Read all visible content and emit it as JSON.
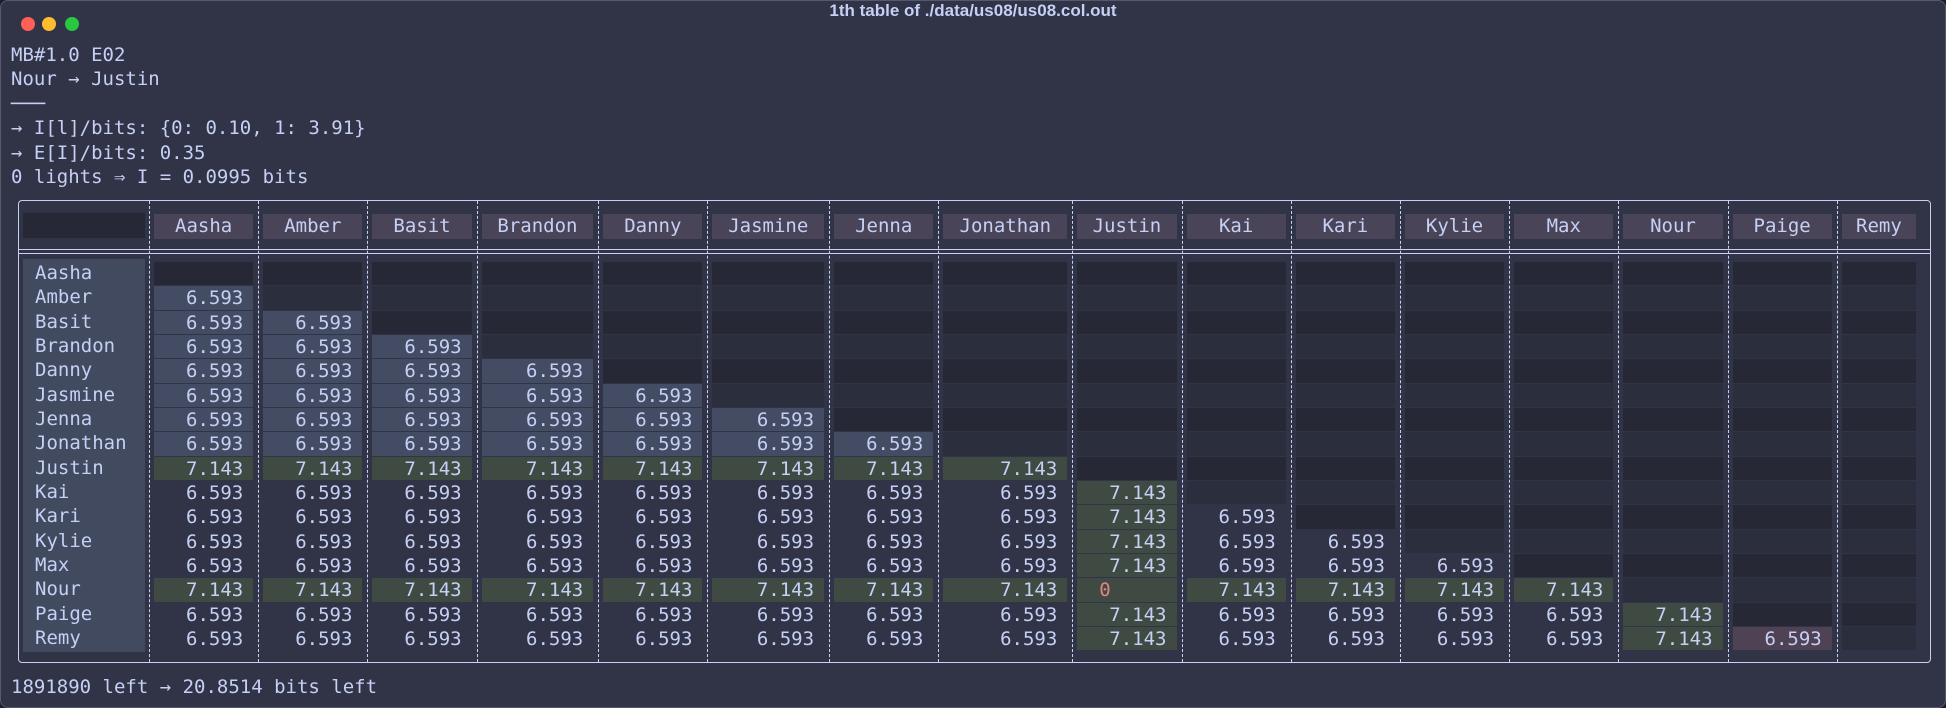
{
  "window": {
    "title": "1th table of ./data/us08/us08.col.out"
  },
  "header": {
    "lines": [
      "MB#1.0 E02",
      "Nour → Justin",
      "───",
      "→ I[l]/bits: {0: 0.10, 1: 3.91}",
      "→ E[I]/bits: 0.35",
      "0 lights ⇒ I = 0.0995 bits"
    ]
  },
  "table": {
    "columns": [
      "Aasha",
      "Amber",
      "Basit",
      "Brandon",
      "Danny",
      "Jasmine",
      "Jenna",
      "Jonathan",
      "Justin",
      "Kai",
      "Kari",
      "Kylie",
      "Max",
      "Nour",
      "Paige",
      "Remy"
    ],
    "rows": [
      {
        "label": "Aasha",
        "cells": [
          null,
          null,
          null,
          null,
          null,
          null,
          null,
          null,
          null,
          null,
          null,
          null,
          null,
          null,
          null,
          null
        ]
      },
      {
        "label": "Amber",
        "cells": [
          6.593,
          null,
          null,
          null,
          null,
          null,
          null,
          null,
          null,
          null,
          null,
          null,
          null,
          null,
          null,
          null
        ]
      },
      {
        "label": "Basit",
        "cells": [
          6.593,
          6.593,
          null,
          null,
          null,
          null,
          null,
          null,
          null,
          null,
          null,
          null,
          null,
          null,
          null,
          null
        ]
      },
      {
        "label": "Brandon",
        "cells": [
          6.593,
          6.593,
          6.593,
          null,
          null,
          null,
          null,
          null,
          null,
          null,
          null,
          null,
          null,
          null,
          null,
          null
        ]
      },
      {
        "label": "Danny",
        "cells": [
          6.593,
          6.593,
          6.593,
          6.593,
          null,
          null,
          null,
          null,
          null,
          null,
          null,
          null,
          null,
          null,
          null,
          null
        ]
      },
      {
        "label": "Jasmine",
        "cells": [
          6.593,
          6.593,
          6.593,
          6.593,
          6.593,
          null,
          null,
          null,
          null,
          null,
          null,
          null,
          null,
          null,
          null,
          null
        ]
      },
      {
        "label": "Jenna",
        "cells": [
          6.593,
          6.593,
          6.593,
          6.593,
          6.593,
          6.593,
          null,
          null,
          null,
          null,
          null,
          null,
          null,
          null,
          null,
          null
        ]
      },
      {
        "label": "Jonathan",
        "cells": [
          6.593,
          6.593,
          6.593,
          6.593,
          6.593,
          6.593,
          6.593,
          null,
          null,
          null,
          null,
          null,
          null,
          null,
          null,
          null
        ]
      },
      {
        "label": "Justin",
        "cells": [
          7.143,
          7.143,
          7.143,
          7.143,
          7.143,
          7.143,
          7.143,
          7.143,
          null,
          null,
          null,
          null,
          null,
          null,
          null,
          null
        ]
      },
      {
        "label": "Kai",
        "cells": [
          6.593,
          6.593,
          6.593,
          6.593,
          6.593,
          6.593,
          6.593,
          6.593,
          7.143,
          null,
          null,
          null,
          null,
          null,
          null,
          null
        ]
      },
      {
        "label": "Kari",
        "cells": [
          6.593,
          6.593,
          6.593,
          6.593,
          6.593,
          6.593,
          6.593,
          6.593,
          7.143,
          6.593,
          null,
          null,
          null,
          null,
          null,
          null
        ]
      },
      {
        "label": "Kylie",
        "cells": [
          6.593,
          6.593,
          6.593,
          6.593,
          6.593,
          6.593,
          6.593,
          6.593,
          7.143,
          6.593,
          6.593,
          null,
          null,
          null,
          null,
          null
        ]
      },
      {
        "label": "Max",
        "cells": [
          6.593,
          6.593,
          6.593,
          6.593,
          6.593,
          6.593,
          6.593,
          6.593,
          7.143,
          6.593,
          6.593,
          6.593,
          null,
          null,
          null,
          null
        ]
      },
      {
        "label": "Nour",
        "cells": [
          7.143,
          7.143,
          7.143,
          7.143,
          7.143,
          7.143,
          7.143,
          7.143,
          0,
          7.143,
          7.143,
          7.143,
          7.143,
          null,
          null,
          null
        ]
      },
      {
        "label": "Paige",
        "cells": [
          6.593,
          6.593,
          6.593,
          6.593,
          6.593,
          6.593,
          6.593,
          6.593,
          7.143,
          6.593,
          6.593,
          6.593,
          6.593,
          7.143,
          null,
          null
        ]
      },
      {
        "label": "Remy",
        "cells": [
          6.593,
          6.593,
          6.593,
          6.593,
          6.593,
          6.593,
          6.593,
          6.593,
          7.143,
          6.593,
          6.593,
          6.593,
          6.593,
          7.143,
          6.593,
          null
        ]
      }
    ]
  },
  "footer": {
    "text": "1891890 left → 20.8514 bits left"
  }
}
